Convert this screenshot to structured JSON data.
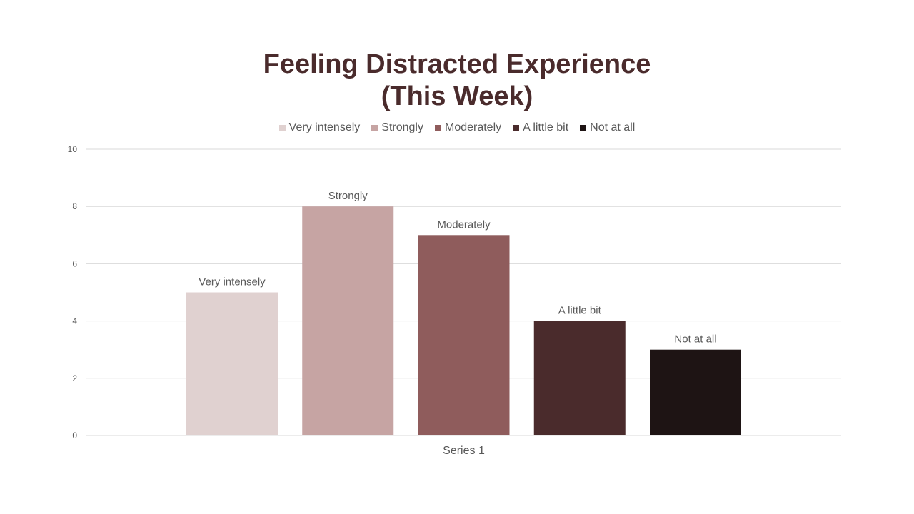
{
  "chart_data": {
    "type": "bar",
    "title_lines": [
      "Feeling Distracted Experience",
      "(This Week)"
    ],
    "categories": [
      "Series 1"
    ],
    "xlabel": "Series 1",
    "ylabel": "",
    "ylim": [
      0,
      10
    ],
    "yticks": [
      "0",
      "2",
      "4",
      "6",
      "8",
      "10"
    ],
    "grid": true,
    "legend_position": "top",
    "series": [
      {
        "name": "Very intensely",
        "values": [
          5
        ],
        "color": "#e0d1d0"
      },
      {
        "name": "Strongly",
        "values": [
          8
        ],
        "color": "#c6a4a3"
      },
      {
        "name": "Moderately",
        "values": [
          7
        ],
        "color": "#8f5c5c"
      },
      {
        "name": "A little bit",
        "values": [
          4
        ],
        "color": "#4a2b2c"
      },
      {
        "name": "Not at all",
        "values": [
          3
        ],
        "color": "#1e1414"
      }
    ]
  }
}
